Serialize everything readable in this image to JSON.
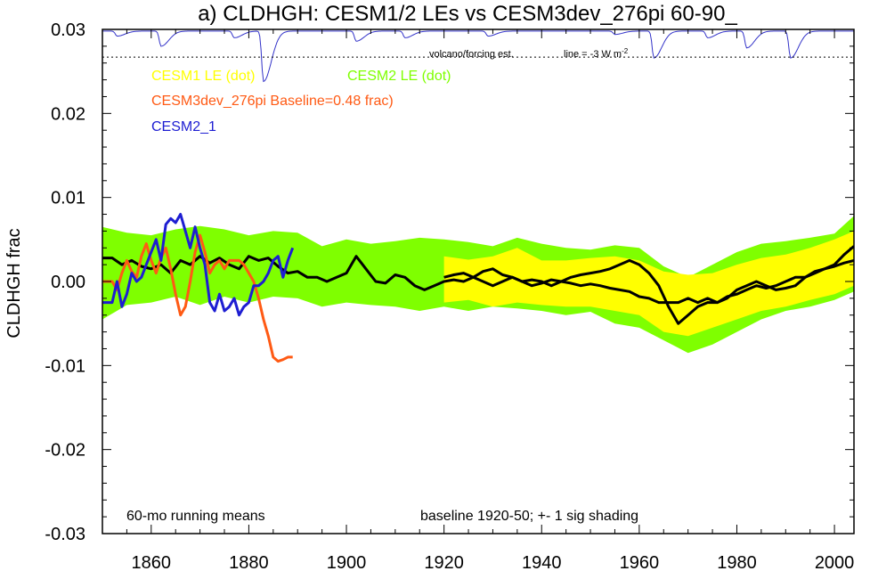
{
  "chart_data": {
    "type": "line",
    "title": "a) CLDHGH: CESM1/2 LEs vs CESM3dev_276pi 60-90_",
    "ylabel": "CLDHGH frac",
    "xlim": [
      1850,
      2004
    ],
    "ylim": [
      -0.03,
      0.03
    ],
    "x_ticks": [
      1860,
      1880,
      1900,
      1920,
      1940,
      1960,
      1980,
      2000
    ],
    "y_ticks": [
      -0.03,
      -0.02,
      -0.01,
      0.0,
      0.01,
      0.02,
      0.03
    ],
    "y_tick_labels": [
      "-0.03",
      "-0.02",
      "-0.01",
      "0.00",
      "0.01",
      "0.02",
      "0.03"
    ],
    "legend": [
      {
        "label": "CESM1 LE (dot)",
        "color": "#ffff00"
      },
      {
        "label": "CESM2 LE (dot)",
        "color": "#7fff00"
      },
      {
        "label": "CESM3dev_276pi Baseline=0.48 frac)",
        "color": "#ff5a14"
      },
      {
        "label": "CESM2_1",
        "color": "#1e1ed2"
      }
    ],
    "annotations": {
      "volcano": "volcano/forcing est.",
      "line_note": "line = -3 W m",
      "line_note_sup": "-2",
      "bottom_left": "60-mo running means",
      "bottom_right": "baseline 1920-50; +- 1 sig shading"
    },
    "reference_line_y": 0.0267,
    "cesm2_band": {
      "color": "#7fff00",
      "x": [
        1850,
        1855,
        1860,
        1865,
        1870,
        1875,
        1880,
        1885,
        1890,
        1895,
        1900,
        1905,
        1910,
        1915,
        1920,
        1925,
        1930,
        1935,
        1940,
        1945,
        1950,
        1955,
        1960,
        1965,
        1970,
        1975,
        1980,
        1985,
        1990,
        1995,
        2000,
        2004
      ],
      "upper": [
        0.0065,
        0.0058,
        0.0055,
        0.0062,
        0.0066,
        0.0062,
        0.0055,
        0.006,
        0.0058,
        0.0042,
        0.005,
        0.0045,
        0.0048,
        0.0052,
        0.005,
        0.0047,
        0.0042,
        0.0052,
        0.0045,
        0.004,
        0.0038,
        0.0043,
        0.004,
        0.0018,
        0.0005,
        0.002,
        0.0035,
        0.0045,
        0.0048,
        0.0052,
        0.0057,
        0.0078
      ],
      "lower": [
        -0.0045,
        -0.0028,
        -0.0025,
        -0.0018,
        -0.0028,
        -0.0018,
        -0.0025,
        -0.0018,
        -0.002,
        -0.003,
        -0.0025,
        -0.0028,
        -0.003,
        -0.0035,
        -0.003,
        -0.0035,
        -0.003,
        -0.0032,
        -0.0035,
        -0.004,
        -0.0036,
        -0.005,
        -0.0055,
        -0.007,
        -0.0085,
        -0.0075,
        -0.006,
        -0.0045,
        -0.0035,
        -0.003,
        -0.0022,
        -0.0012
      ]
    },
    "cesm1_band": {
      "color": "#ffff00",
      "x": [
        1920,
        1925,
        1930,
        1935,
        1940,
        1945,
        1950,
        1955,
        1960,
        1965,
        1970,
        1975,
        1980,
        1985,
        1990,
        1995,
        2000,
        2004
      ],
      "upper": [
        0.003,
        0.0026,
        0.003,
        0.004,
        0.0025,
        0.0025,
        0.0028,
        0.003,
        0.0025,
        0.0012,
        0.0008,
        0.001,
        0.002,
        0.0028,
        0.0032,
        0.004,
        0.005,
        0.006
      ],
      "lower": [
        -0.0025,
        -0.0022,
        -0.003,
        -0.0025,
        -0.0028,
        -0.003,
        -0.003,
        -0.0035,
        -0.004,
        -0.006,
        -0.0065,
        -0.0055,
        -0.0045,
        -0.0035,
        -0.003,
        -0.0022,
        -0.0015,
        -0.0005
      ]
    },
    "series": [
      {
        "color": "#000000",
        "x": [
          1850,
          1852,
          1854,
          1856,
          1858,
          1860,
          1862,
          1864,
          1866,
          1868,
          1870,
          1872,
          1874,
          1876,
          1878,
          1880,
          1882,
          1884,
          1886,
          1888,
          1890,
          1892,
          1894,
          1896,
          1898,
          1900,
          1902,
          1904,
          1906,
          1908,
          1910,
          1912,
          1914,
          1916,
          1918,
          1920,
          1922,
          1924,
          1926,
          1928,
          1930,
          1932,
          1934,
          1936,
          1938,
          1940,
          1942,
          1944,
          1946,
          1948,
          1950,
          1952,
          1954,
          1956,
          1958,
          1960,
          1962,
          1964,
          1966,
          1968,
          1970,
          1972,
          1974,
          1976,
          1978,
          1980,
          1982,
          1984,
          1986,
          1988,
          1990,
          1992,
          1994,
          1996,
          1998,
          2000,
          2002,
          2004
        ],
        "y": [
          0.0028,
          0.0028,
          0.002,
          0.0025,
          0.0018,
          0.0015,
          0.002,
          0.001,
          0.0025,
          0.002,
          0.003,
          0.0022,
          0.0028,
          0.002,
          0.0015,
          0.003,
          0.0025,
          0.0028,
          0.0018,
          0.001,
          0.0012,
          0.0005,
          0.0005,
          0.0,
          0.0005,
          0.001,
          0.003,
          0.0015,
          0.0,
          -0.0002,
          0.0008,
          0.0005,
          -0.0005,
          -0.001,
          -0.0005,
          0.0,
          0.0002,
          0.0,
          0.0005,
          0.0,
          -0.0005,
          0.0,
          0.0005,
          0.0,
          0.0002,
          0.0,
          -0.0005,
          0.0,
          -0.0002,
          -0.0005,
          -0.0003,
          -0.0005,
          -0.0008,
          -0.001,
          -0.0012,
          -0.0018,
          -0.002,
          -0.0025,
          -0.0025,
          -0.0025,
          -0.002,
          -0.0025,
          -0.002,
          -0.0025,
          -0.0018,
          -0.0015,
          -0.001,
          -0.0005,
          -0.0008,
          -0.0005,
          0.0,
          0.0005,
          0.0005,
          0.0012,
          0.0015,
          0.0018,
          0.0022,
          0.0025
        ]
      },
      {
        "color": "#000000",
        "x": [
          1920,
          1922,
          1924,
          1926,
          1928,
          1930,
          1932,
          1934,
          1936,
          1938,
          1940,
          1942,
          1944,
          1946,
          1948,
          1950,
          1952,
          1954,
          1956,
          1958,
          1960,
          1962,
          1964,
          1966,
          1968,
          1970,
          1972,
          1974,
          1976,
          1978,
          1980,
          1982,
          1984,
          1986,
          1988,
          1990,
          1992,
          1994,
          1996,
          1998,
          2000,
          2002,
          2004
        ],
        "y": [
          0.0005,
          0.0008,
          0.001,
          0.0005,
          0.0012,
          0.0015,
          0.0008,
          0.0005,
          0.0,
          -0.0005,
          -0.0002,
          0.0002,
          0.0,
          0.0005,
          0.0008,
          0.001,
          0.0012,
          0.0015,
          0.002,
          0.0025,
          0.002,
          0.001,
          -0.0005,
          -0.003,
          -0.005,
          -0.004,
          -0.003,
          -0.0025,
          -0.0025,
          -0.002,
          -0.001,
          -0.0005,
          0.0,
          -0.0005,
          -0.001,
          -0.0008,
          -0.0005,
          0.0005,
          0.001,
          0.0015,
          0.002,
          0.0032,
          0.0042
        ]
      },
      {
        "name": "CESM3dev_276pi",
        "color": "#ff5a14",
        "x": [
          1850,
          1851,
          1852,
          1853,
          1854,
          1855,
          1856,
          1857,
          1858,
          1859,
          1860,
          1861,
          1862,
          1863,
          1864,
          1865,
          1866,
          1867,
          1868,
          1869,
          1870,
          1871,
          1872,
          1873,
          1874,
          1875,
          1876,
          1877,
          1878,
          1879,
          1880,
          1881,
          1882,
          1883,
          1884,
          1885,
          1886,
          1887,
          1888,
          1889
        ],
        "y": [
          0.0,
          0.0,
          0.0,
          -0.001,
          0.001,
          0.0025,
          0.0012,
          0.0005,
          0.003,
          0.0045,
          0.0025,
          0.001,
          0.0028,
          0.004,
          0.0015,
          -0.0015,
          -0.004,
          -0.003,
          0.0,
          0.0035,
          0.0055,
          0.0035,
          0.001,
          0.002,
          0.0025,
          0.0015,
          0.0025,
          0.0025,
          0.0025,
          0.002,
          0.001,
          0.0,
          -0.002,
          -0.0045,
          -0.0065,
          -0.009,
          -0.0095,
          -0.0093,
          -0.009,
          -0.009
        ]
      },
      {
        "name": "CESM2_1",
        "color": "#1e1ed2",
        "x": [
          1850,
          1851,
          1852,
          1853,
          1854,
          1855,
          1856,
          1857,
          1858,
          1859,
          1860,
          1861,
          1862,
          1863,
          1864,
          1865,
          1866,
          1867,
          1868,
          1869,
          1870,
          1871,
          1872,
          1873,
          1874,
          1875,
          1876,
          1877,
          1878,
          1879,
          1880,
          1881,
          1882,
          1883,
          1884,
          1885,
          1886,
          1887,
          1888,
          1889
        ],
        "y": [
          -0.0025,
          -0.0025,
          -0.0025,
          0.0,
          -0.003,
          -0.0015,
          0.001,
          0.0,
          0.0005,
          0.002,
          0.0035,
          0.005,
          0.0025,
          0.0068,
          0.0075,
          0.007,
          0.008,
          0.006,
          0.004,
          0.0065,
          0.004,
          0.002,
          -0.0025,
          -0.0035,
          -0.0015,
          -0.0035,
          -0.003,
          -0.002,
          -0.004,
          -0.003,
          -0.0025,
          -0.0005,
          -0.0005,
          0.0,
          0.001,
          0.0025,
          0.003,
          0.0005,
          0.0025,
          0.004
        ]
      }
    ],
    "forcing": {
      "color": "#3232c8",
      "baseline_y": 0.0298,
      "dips": [
        {
          "x": 1853,
          "depth": 0.0006
        },
        {
          "x": 1862,
          "depth": 0.0018
        },
        {
          "x": 1877,
          "depth": 0.0008
        },
        {
          "x": 1883,
          "depth": 0.006
        },
        {
          "x": 1902,
          "depth": 0.0012
        },
        {
          "x": 1912,
          "depth": 0.0008
        },
        {
          "x": 1929,
          "depth": 0.0006
        },
        {
          "x": 1955,
          "depth": 0.0004
        },
        {
          "x": 1963,
          "depth": 0.0032
        },
        {
          "x": 1974,
          "depth": 0.0008
        },
        {
          "x": 1982,
          "depth": 0.002
        },
        {
          "x": 1991,
          "depth": 0.0032
        }
      ]
    }
  }
}
